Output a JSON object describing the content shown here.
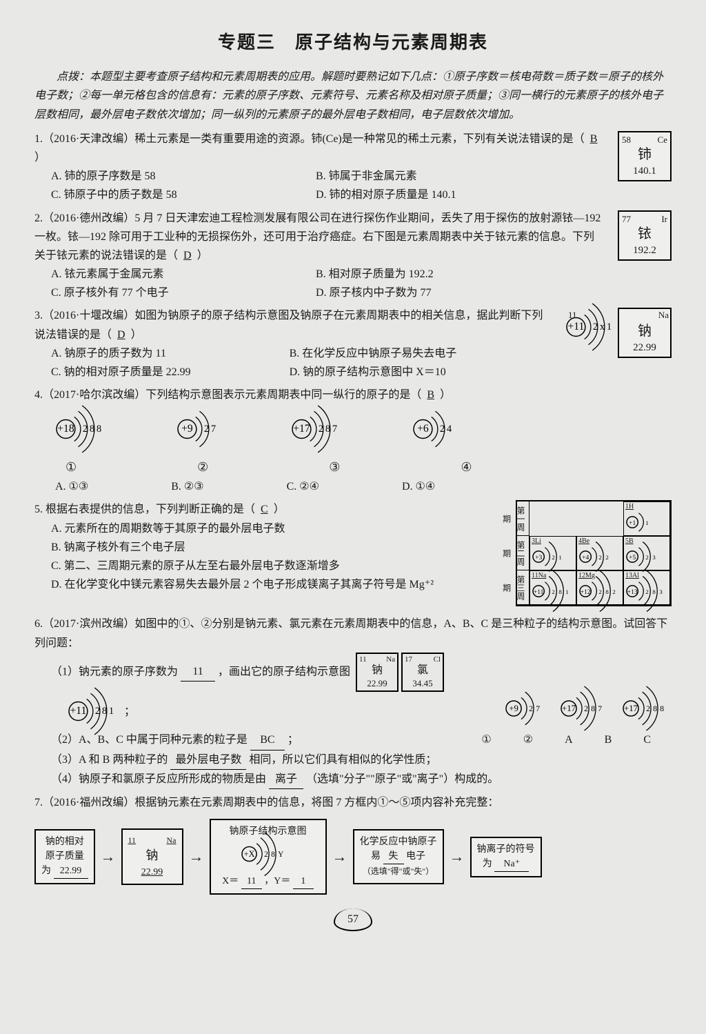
{
  "title": "专题三　原子结构与元素周期表",
  "intro": "点拨：本题型主要考查原子结构和元素周期表的应用。解题时要熟记如下几点：①原子序数＝核电荷数＝质子数＝原子的核外电子数；②每一单元格包含的信息有：元素的原子序数、元素符号、元素名称及相对原子质量；③同一横行的元素原子的核外电子层数相同，最外层电子数依次增加；同一纵列的元素原子的最外层电子数相同，电子层数依次增加。",
  "q1": {
    "stem": "1.（2016·天津改编）稀土元素是一类有重要用途的资源。铈(Ce)是一种常见的稀土元素，下列有关说法错误的是（",
    "ans": "B",
    "stem2": "）",
    "A": "A. 铈的原子序数是 58",
    "B": "B. 铈属于非金属元素",
    "C": "C. 铈原子中的质子数是 58",
    "D": "D. 铈的相对原子质量是 140.1",
    "card": {
      "num": "58",
      "sym_en": "Ce",
      "sym_cn": "铈",
      "mass": "140.1"
    }
  },
  "q2": {
    "stem": "2.（2016·德州改编）5 月 7 日天津宏迪工程检测发展有限公司在进行探伤作业期间，丢失了用于探伤的放射源铱—192 一枚。铱—192 除可用于工业种的无损探伤外，还可用于治疗癌症。右下图是元素周期表中关于铱元素的信息。下列关于铱元素的说法错误的是（",
    "ans": "D",
    "stem2": "）",
    "A": "A. 铱元素属于金属元素",
    "B": "B. 相对原子质量为 192.2",
    "C": "C. 原子核外有 77 个电子",
    "D": "D. 原子核内中子数为 77",
    "card": {
      "num": "77",
      "sym_en": "Ir",
      "sym_cn": "铱",
      "mass": "192.2"
    }
  },
  "q3": {
    "stem": "3.（2016·十堰改编）如图为钠原子的原子结构示意图及钠原子在元素周期表中的相关信息，据此判断下列说法错误的是（",
    "ans": "D",
    "stem2": "）",
    "A": "A. 钠原子的质子数为 11",
    "B": "B. 在化学反应中钠原子易失去电子",
    "C": "C. 钠的相对原子质量是 22.99",
    "D": "D. 钠的原子结构示意图中 X＝10",
    "atom": {
      "nucleus": "+11",
      "shells": [
        "2",
        "x",
        "1"
      ]
    },
    "card": {
      "num": "11",
      "sym_en": "Na",
      "sym_cn": "钠",
      "mass": "22.99"
    }
  },
  "q4": {
    "stem": "4.（2017·哈尔滨改编）下列结构示意图表示元素周期表中同一纵行的原子的是（",
    "ans": "B",
    "stem2": "）",
    "atoms": [
      {
        "nucleus": "+18",
        "shells": [
          "2",
          "8",
          "8"
        ]
      },
      {
        "nucleus": "+9",
        "shells": [
          "2",
          "7"
        ]
      },
      {
        "nucleus": "+17",
        "shells": [
          "2",
          "8",
          "7"
        ]
      },
      {
        "nucleus": "+6",
        "shells": [
          "2",
          "4"
        ]
      }
    ],
    "nums": [
      "①",
      "②",
      "③",
      "④"
    ],
    "A": "A. ①③",
    "B": "B. ②③",
    "C": "C. ②④",
    "D": "D. ①④"
  },
  "q5": {
    "stem": "5. 根据右表提供的信息，下列判断正确的是（",
    "ans": "C",
    "stem2": "）",
    "A": "A. 元素所在的周期数等于其原子的最外层电子数",
    "B": "B. 钠离子核外有三个电子层",
    "C": "C. 第二、三周期元素的原子从左至右最外层电子数逐渐增多",
    "D": "D. 在化学变化中镁元素容易失去最外层 2 个电子形成镁离子其离子符号是 Mg⁺²",
    "periods": [
      "第一周期",
      "第二周期",
      "第三周期"
    ],
    "table": [
      [
        {
          "lbl": "1H",
          "n": "+1",
          "s": [
            "1"
          ]
        }
      ],
      [
        {
          "lbl": "3Li",
          "n": "+3",
          "s": [
            "2",
            "1"
          ]
        },
        {
          "lbl": "4Be",
          "n": "+4",
          "s": [
            "2",
            "2"
          ]
        },
        {
          "lbl": "5B",
          "n": "+5",
          "s": [
            "2",
            "3"
          ]
        }
      ],
      [
        {
          "lbl": "11Na",
          "n": "+11",
          "s": [
            "2",
            "8",
            "1"
          ]
        },
        {
          "lbl": "12Mg",
          "n": "+12",
          "s": [
            "2",
            "8",
            "2"
          ]
        },
        {
          "lbl": "13Al",
          "n": "+13",
          "s": [
            "2",
            "8",
            "3"
          ]
        }
      ]
    ]
  },
  "q6": {
    "stem": "6.（2017·滨州改编）如图中的①、②分别是钠元素、氯元素在元素周期表中的信息，A、B、C 是三种粒子的结构示意图。试回答下列问题：",
    "p1a": "（1）钠元素的原子序数为",
    "p1ans": "11",
    "p1b": "，画出它的原子结构示意图",
    "atom11": {
      "nucleus": "+11",
      "shells": [
        "2",
        "8",
        "1"
      ]
    },
    "cards": [
      {
        "num": "11",
        "en": "Na",
        "cn": "钠",
        "mass": "22.99"
      },
      {
        "num": "17",
        "en": "Cl",
        "cn": "氯",
        "mass": "34.45"
      }
    ],
    "abc": [
      {
        "nucleus": "+9",
        "shells": [
          "2",
          "7"
        ]
      },
      {
        "nucleus": "+17",
        "shells": [
          "2",
          "8",
          "7"
        ]
      },
      {
        "nucleus": "+17",
        "shells": [
          "2",
          "8",
          "8"
        ]
      }
    ],
    "labels": [
      "①",
      "②",
      "A",
      "B",
      "C"
    ],
    "p2a": "（2）A、B、C 中属于同种元素的粒子是",
    "p2ans": "BC",
    "p2b": "；",
    "p3a": "（3）A 和 B 两种粒子的",
    "p3ans": "最外层电子数",
    "p3b": "相同，所以它们具有相似的化学性质；",
    "p4a": "（4）钠原子和氯原子反应所形成的物质是由",
    "p4ans": "离子",
    "p4b": "（选填\"分子\"\"原子\"或\"离子\"）构成的。"
  },
  "q7": {
    "stem": "7.（2016·福州改编）根据钠元素在元素周期表中的信息，将图 7 方框内①～⑤项内容补充完整：",
    "b1a": "钠的相对",
    "b1b": "原子质量",
    "b1c": "为",
    "b1ans": "22.99",
    "b2": {
      "num": "11",
      "en": "Na",
      "cn": "钠",
      "mass": "22.99"
    },
    "b3title": "钠原子结构示意图",
    "b3atom": {
      "nucleus": "+X",
      "shells": [
        "2",
        "8",
        "Y"
      ]
    },
    "b3x": "X＝",
    "b3xans": "11",
    "b3y": "，Y＝",
    "b3yans": "1",
    "b4a": "化学反应中钠原子",
    "b4b": "易",
    "b4ans": "失",
    "b4c": "电子",
    "b4d": "（选填\"得\"或\"失\"）",
    "b5a": "钠离子的符号",
    "b5b": "为",
    "b5ans": "Na⁺"
  },
  "pagenum": "57"
}
